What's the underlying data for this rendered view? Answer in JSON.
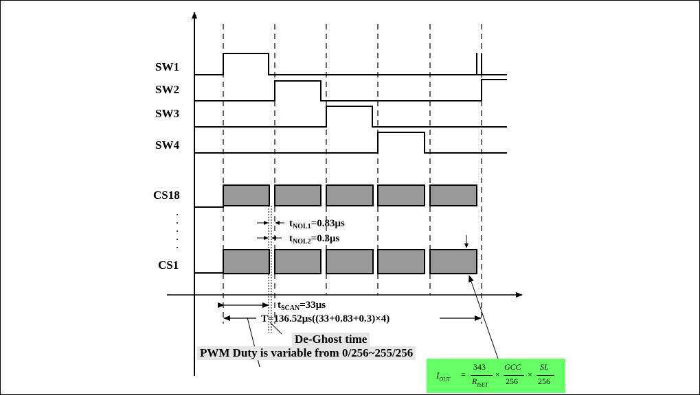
{
  "signals": {
    "sw1": "SW1",
    "sw2": "SW2",
    "sw3": "SW3",
    "sw4": "SW4",
    "cs18": "CS18",
    "cs1": "CS1"
  },
  "annotations": {
    "tnol1_base": "t",
    "tnol1_sub": "NOL1",
    "tnol1_val": "=0.83μs",
    "tnol2_base": "t",
    "tnol2_sub": "NOL2",
    "tnol2_val": "=0.3μs",
    "tscan_base": "t",
    "tscan_sub": "SCAN",
    "tscan_val": "=33μs",
    "period": "T=136.52μs((33+0.83+0.3)×4)",
    "deghost": "De-Ghost time",
    "pwm": "PWM Duty is variable from 0/256~255/256"
  },
  "formula": {
    "i": "I",
    "i_sub": "OUT",
    "eq": "=",
    "n1": "343",
    "d1": "R",
    "d1_sub": "ISET",
    "x1": "×",
    "n2": "GCC",
    "d2": "256",
    "x2": "×",
    "n3": "SL",
    "d3": "256",
    "color": "#66ff66"
  }
}
